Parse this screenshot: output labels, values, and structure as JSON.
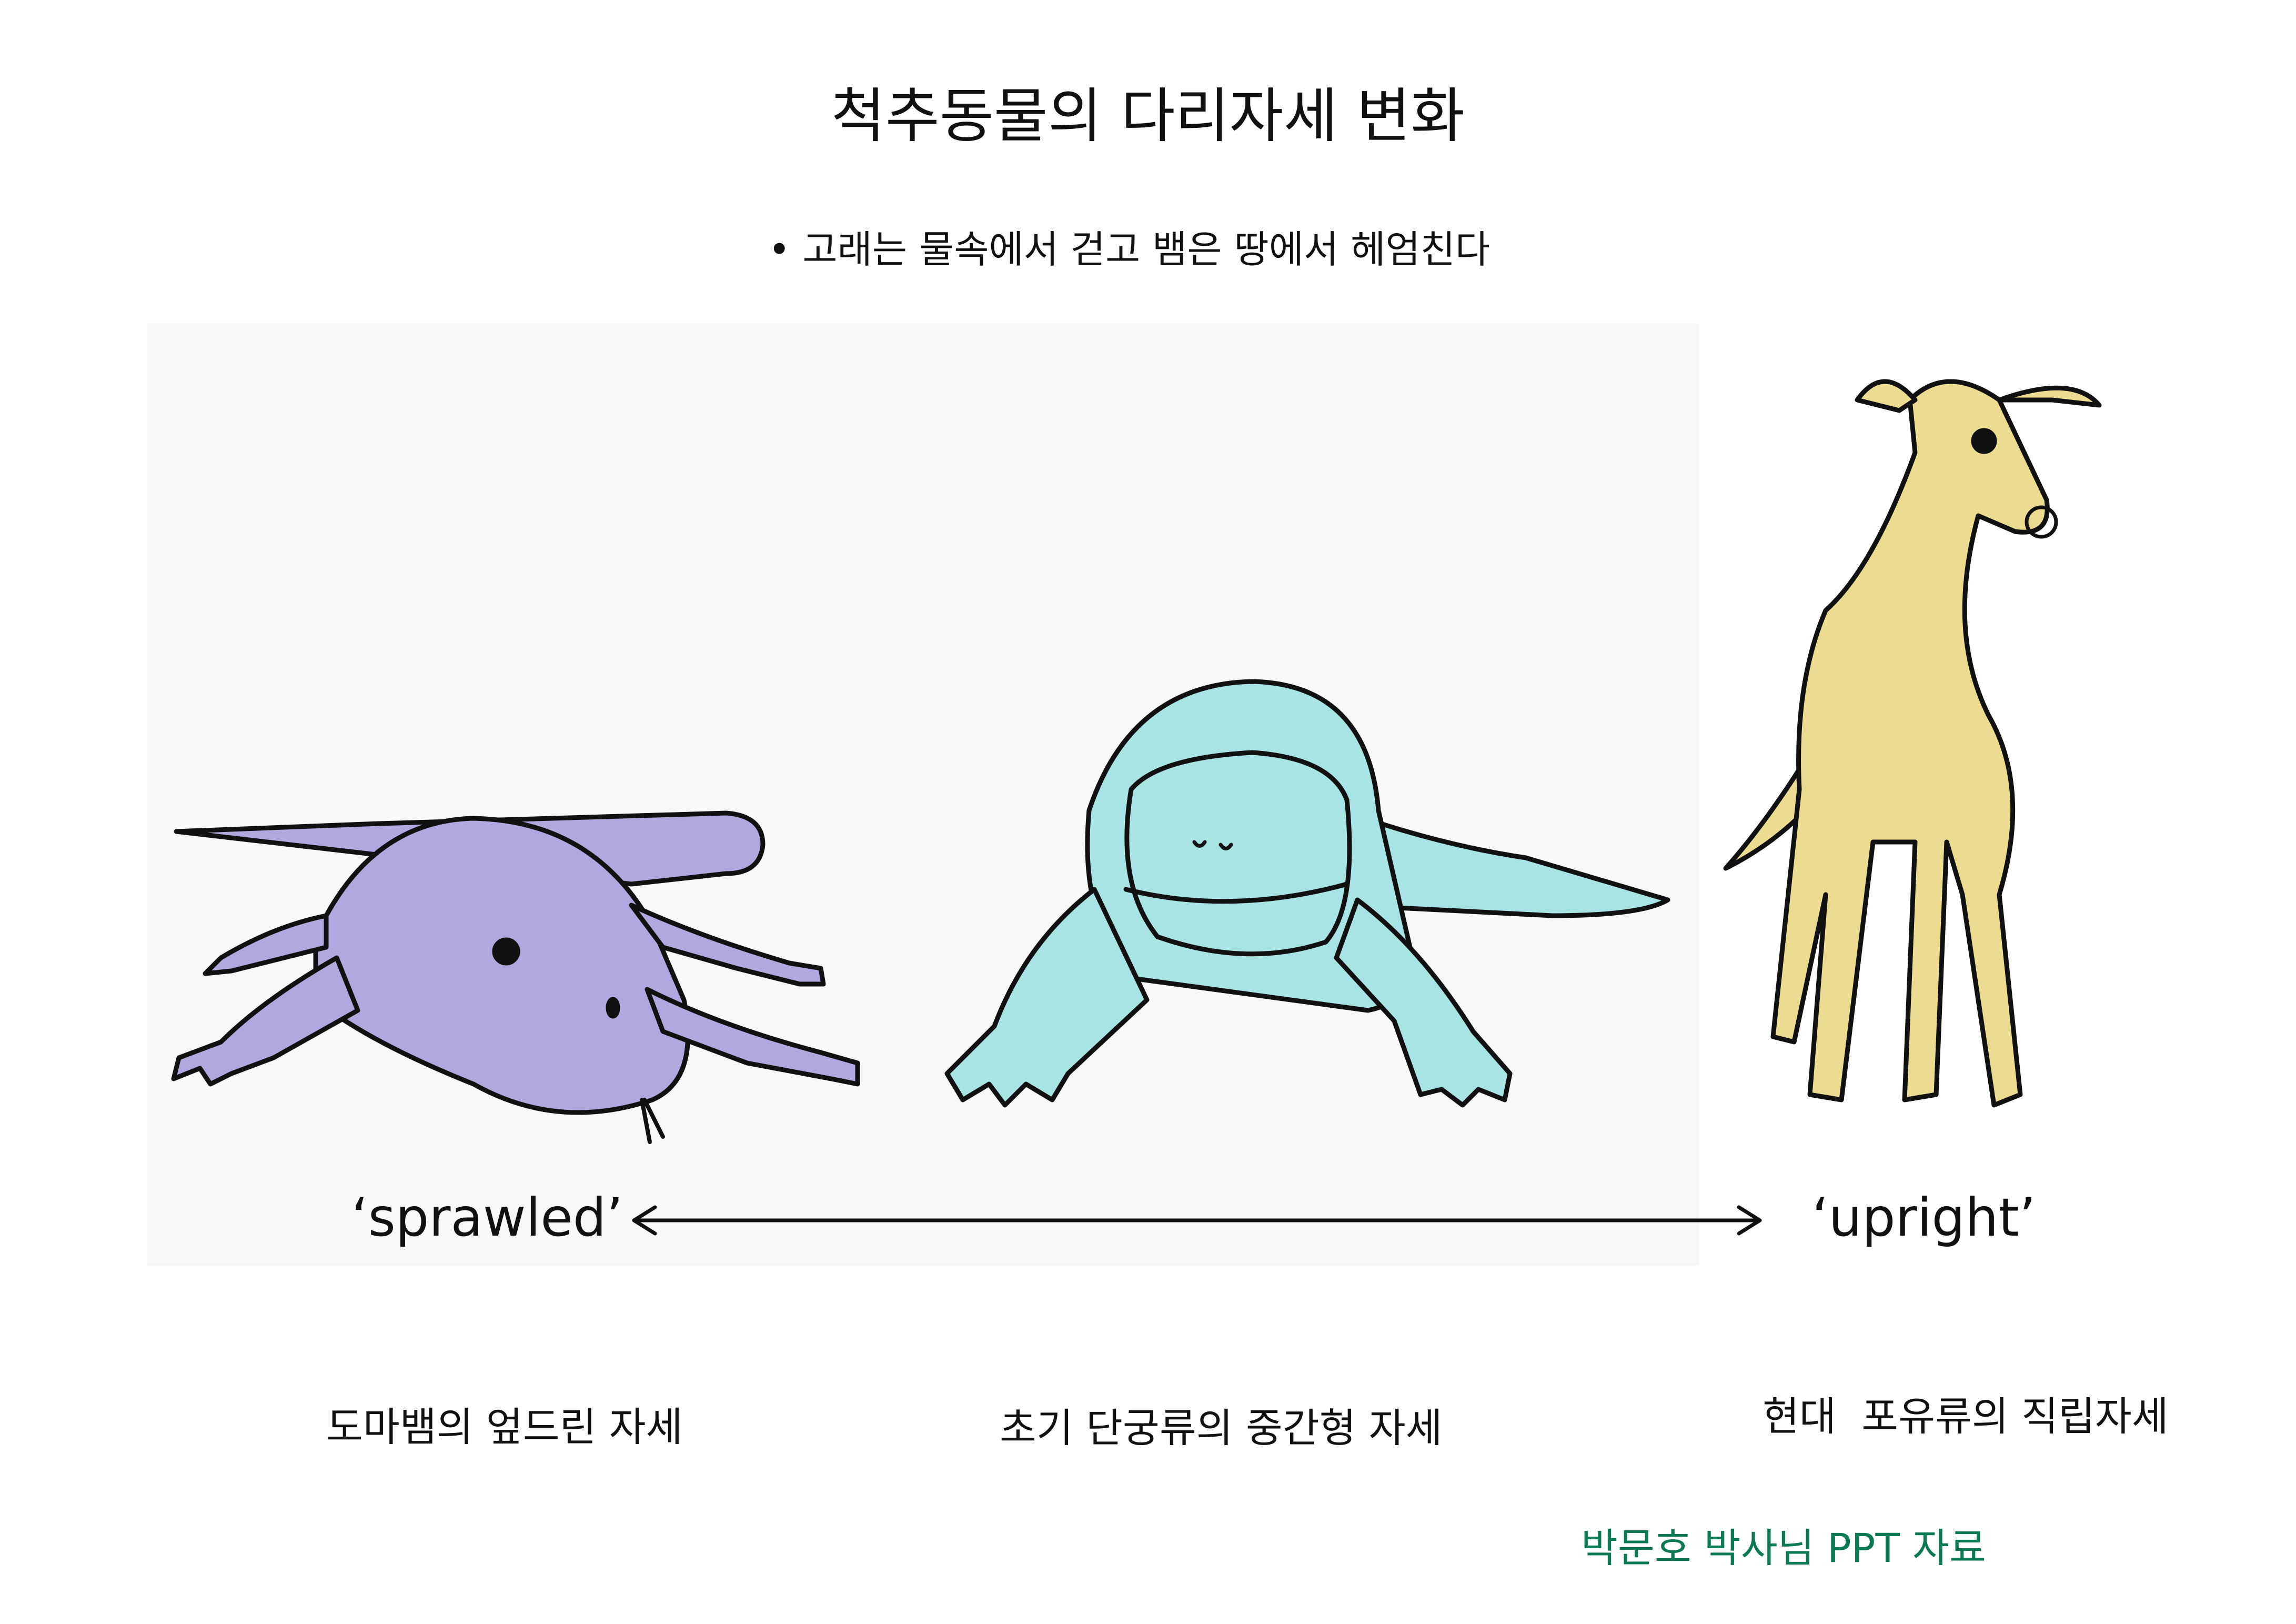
{
  "slide": {
    "title": "척추동물의 다리자세 변화",
    "bullet": "• 고래는 물속에서 걷고 뱀은 땅에서 헤엄친다"
  },
  "figure": {
    "left_term": "‘sprawled’",
    "right_term": "‘upright’",
    "animals": [
      {
        "name": "lizard",
        "color": "#b3a7e0"
      },
      {
        "name": "crocodilian",
        "color": "#a8e4e4"
      },
      {
        "name": "dog",
        "color": "#ecdc92"
      }
    ]
  },
  "captions": [
    "도마뱀의 엎드린 자세",
    "초기 단궁류의 중간형 자세",
    "현대  포유류의 직립자세"
  ],
  "credit": {
    "text": "박문호 박사님 PPT 자료",
    "color": "#0b7a52"
  }
}
